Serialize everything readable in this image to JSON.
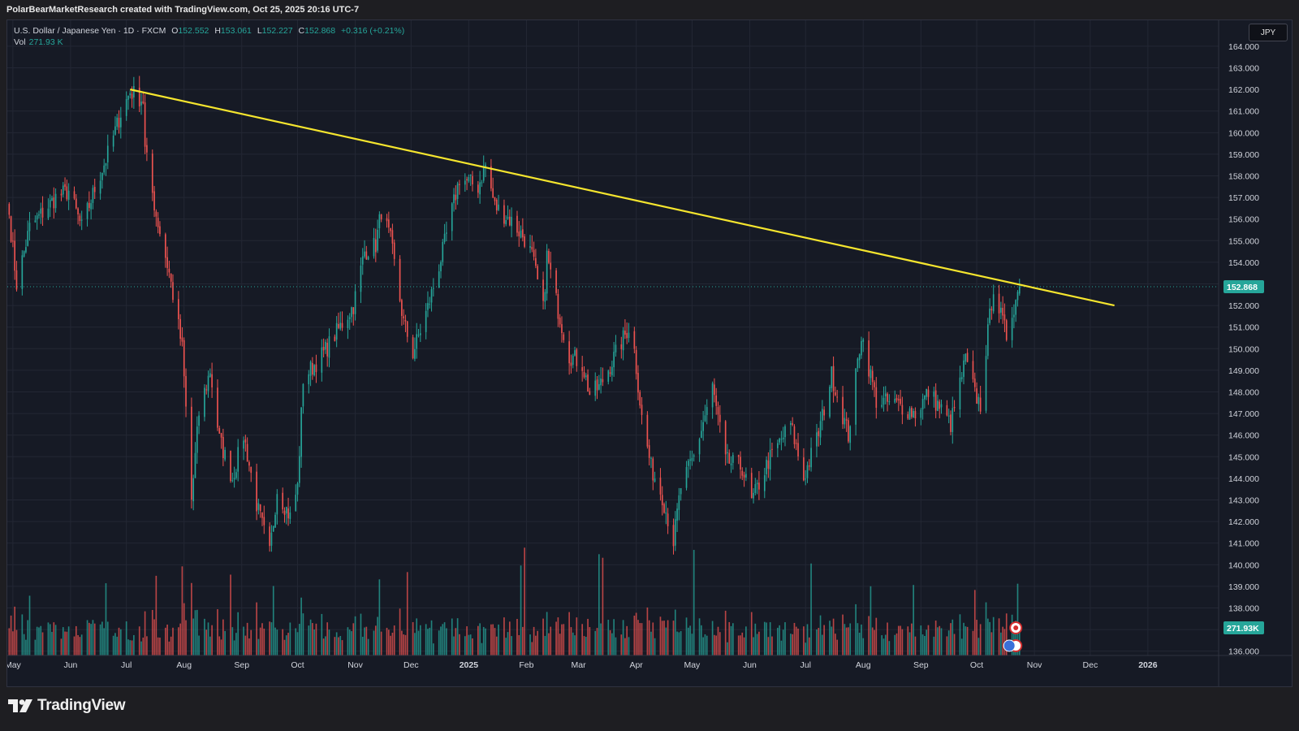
{
  "header": {
    "attribution": "PolarBearMarketResearch created with TradingView.com, Oct 25, 2025 20:16 UTC-7"
  },
  "legend": {
    "symbol": "U.S. Dollar / Japanese Yen · 1D · FXCM",
    "open_label": "O",
    "open": "152.552",
    "high_label": "H",
    "high": "153.061",
    "low_label": "L",
    "low": "152.227",
    "close_label": "C",
    "close": "152.868",
    "change": "+0.316 (+0.21%)",
    "vol_label": "Vol",
    "vol": "271.93 K"
  },
  "currency_button": "JPY",
  "footer": {
    "brand": "TradingView"
  },
  "colors": {
    "up": "#26a69a",
    "down": "#ef5350",
    "trendline": "#f5e52e",
    "background": "#161a25",
    "grid": "#232734",
    "axis_text": "#d1d4dc"
  },
  "chart_data": {
    "type": "candlestick",
    "symbol": "USDJPY",
    "interval": "1D",
    "last_price_label": "152.868",
    "last_volume_label": "271.93K",
    "y_ticks": [
      "136.000",
      "137.000",
      "138.000",
      "139.000",
      "140.000",
      "141.000",
      "142.000",
      "143.000",
      "144.000",
      "145.000",
      "146.000",
      "147.000",
      "148.000",
      "149.000",
      "150.000",
      "151.000",
      "152.000",
      "153.000",
      "154.000",
      "155.000",
      "156.000",
      "157.000",
      "158.000",
      "159.000",
      "160.000",
      "161.000",
      "162.000",
      "163.000",
      "164.000"
    ],
    "ylim": [
      135.8,
      165.2
    ],
    "x_ticks": [
      {
        "label": "May",
        "date": "2024-05-01"
      },
      {
        "label": "Jun",
        "date": "2024-06-01"
      },
      {
        "label": "Jul",
        "date": "2024-07-01"
      },
      {
        "label": "Aug",
        "date": "2024-08-01"
      },
      {
        "label": "Sep",
        "date": "2024-09-01"
      },
      {
        "label": "Oct",
        "date": "2024-10-01"
      },
      {
        "label": "Nov",
        "date": "2024-11-01"
      },
      {
        "label": "Dec",
        "date": "2024-12-01"
      },
      {
        "label": "2025",
        "date": "2025-01-01"
      },
      {
        "label": "Feb",
        "date": "2025-02-01"
      },
      {
        "label": "Mar",
        "date": "2025-03-01"
      },
      {
        "label": "Apr",
        "date": "2025-04-01"
      },
      {
        "label": "May",
        "date": "2025-05-01"
      },
      {
        "label": "Jun",
        "date": "2025-06-01"
      },
      {
        "label": "Jul",
        "date": "2025-07-01"
      },
      {
        "label": "Aug",
        "date": "2025-08-01"
      },
      {
        "label": "Sep",
        "date": "2025-09-01"
      },
      {
        "label": "Oct",
        "date": "2025-10-01"
      },
      {
        "label": "Nov",
        "date": "2025-11-01"
      },
      {
        "label": "Dec",
        "date": "2025-12-01"
      },
      {
        "label": "2026",
        "date": "2026-01-01"
      }
    ],
    "x_range": [
      "2024-04-28",
      "2026-02-08"
    ],
    "price_path": [
      [
        "2024-04-29",
        156.2
      ],
      [
        "2024-05-03",
        153.0
      ],
      [
        "2024-05-10",
        155.6
      ],
      [
        "2024-05-24",
        157.0
      ],
      [
        "2024-05-31",
        157.3
      ],
      [
        "2024-06-07",
        155.6
      ],
      [
        "2024-06-14",
        157.4
      ],
      [
        "2024-06-21",
        159.0
      ],
      [
        "2024-06-28",
        160.9
      ],
      [
        "2024-07-03",
        161.9
      ],
      [
        "2024-07-10",
        161.5
      ],
      [
        "2024-07-11",
        159.2
      ],
      [
        "2024-07-17",
        156.2
      ],
      [
        "2024-07-24",
        153.5
      ],
      [
        "2024-07-31",
        150.0
      ],
      [
        "2024-08-05",
        143.0
      ],
      [
        "2024-08-09",
        147.0
      ],
      [
        "2024-08-15",
        149.0
      ],
      [
        "2024-08-20",
        145.8
      ],
      [
        "2024-08-27",
        144.0
      ],
      [
        "2024-09-02",
        146.0
      ],
      [
        "2024-09-09",
        142.8
      ],
      [
        "2024-09-16",
        140.5
      ],
      [
        "2024-09-20",
        143.5
      ],
      [
        "2024-09-27",
        142.2
      ],
      [
        "2024-10-01",
        143.6
      ],
      [
        "2024-10-04",
        148.6
      ],
      [
        "2024-10-15",
        149.8
      ],
      [
        "2024-10-31",
        152.0
      ],
      [
        "2024-11-06",
        154.5
      ],
      [
        "2024-11-12",
        154.8
      ],
      [
        "2024-11-15",
        156.4
      ],
      [
        "2024-11-20",
        155.0
      ],
      [
        "2024-11-27",
        151.2
      ],
      [
        "2024-12-02",
        149.8
      ],
      [
        "2024-12-10",
        151.9
      ],
      [
        "2024-12-18",
        154.5
      ],
      [
        "2024-12-27",
        157.9
      ],
      [
        "2025-01-06",
        157.5
      ],
      [
        "2025-01-10",
        158.5
      ],
      [
        "2025-01-15",
        156.6
      ],
      [
        "2025-01-24",
        155.9
      ],
      [
        "2025-01-31",
        155.1
      ],
      [
        "2025-02-04",
        154.3
      ],
      [
        "2025-02-10",
        151.8
      ],
      [
        "2025-02-12",
        154.3
      ],
      [
        "2025-02-18",
        151.8
      ],
      [
        "2025-02-24",
        149.7
      ],
      [
        "2025-03-03",
        149.3
      ],
      [
        "2025-03-07",
        147.9
      ],
      [
        "2025-03-12",
        148.2
      ],
      [
        "2025-03-19",
        149.4
      ],
      [
        "2025-03-28",
        151.0
      ],
      [
        "2025-03-31",
        149.9
      ],
      [
        "2025-04-04",
        146.8
      ],
      [
        "2025-04-09",
        144.5
      ],
      [
        "2025-04-15",
        143.2
      ],
      [
        "2025-04-21",
        141.1
      ],
      [
        "2025-04-25",
        143.6
      ],
      [
        "2025-05-02",
        145.0
      ],
      [
        "2025-05-12",
        148.2
      ],
      [
        "2025-05-19",
        144.8
      ],
      [
        "2025-05-28",
        144.5
      ],
      [
        "2025-06-02",
        142.9
      ],
      [
        "2025-06-11",
        144.8
      ],
      [
        "2025-06-23",
        146.5
      ],
      [
        "2025-06-30",
        144.0
      ],
      [
        "2025-07-08",
        146.1
      ],
      [
        "2025-07-15",
        148.8
      ],
      [
        "2025-07-24",
        146.0
      ],
      [
        "2025-07-31",
        150.7
      ],
      [
        "2025-08-08",
        147.6
      ],
      [
        "2025-08-20",
        147.4
      ],
      [
        "2025-08-29",
        147.0
      ],
      [
        "2025-09-05",
        148.0
      ],
      [
        "2025-09-11",
        147.3
      ],
      [
        "2025-09-17",
        146.5
      ],
      [
        "2025-09-25",
        149.5
      ],
      [
        "2025-09-30",
        147.9
      ],
      [
        "2025-10-03",
        147.4
      ],
      [
        "2025-10-06",
        150.0
      ],
      [
        "2025-10-10",
        152.9
      ],
      [
        "2025-10-14",
        151.5
      ],
      [
        "2025-10-17",
        150.6
      ],
      [
        "2025-10-20",
        151.7
      ],
      [
        "2025-10-24",
        152.87
      ]
    ],
    "trendline": {
      "color": "#f5e52e",
      "points": [
        [
          "2024-07-03",
          162.0
        ],
        [
          "2025-12-14",
          152.0
        ]
      ]
    },
    "volume_note": "Daily volume histogram along bottom, bars colored by candle direction; last value 271.93K"
  }
}
